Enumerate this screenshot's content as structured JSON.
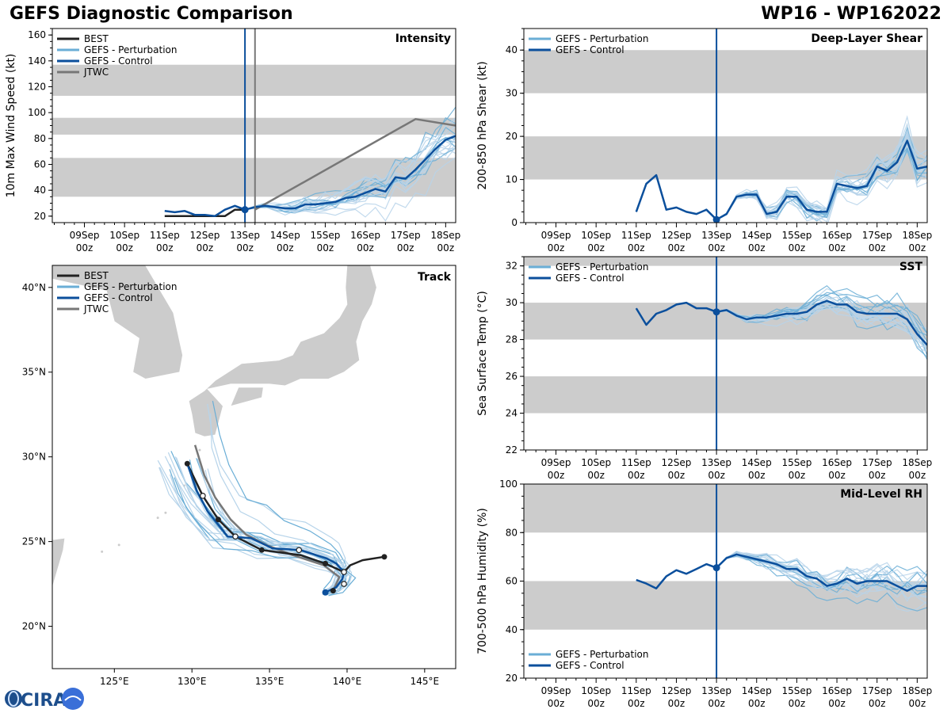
{
  "header": {
    "title_left": "GEFS Diagnostic Comparison",
    "title_right": "WP16 - WP162022"
  },
  "colors": {
    "best": "#222222",
    "perturbation": "#6aaed6",
    "perturbation_light": "#b7d4ea",
    "control": "#0b4f9c",
    "jtwc": "#777777",
    "band": "#cccccc",
    "land": "#cccccc"
  },
  "time_axis": {
    "ticks": [
      {
        "d": 1,
        "top": "09Sep",
        "bot": "00z"
      },
      {
        "d": 2,
        "top": "10Sep",
        "bot": "00z"
      },
      {
        "d": 3,
        "top": "11Sep",
        "bot": "00z"
      },
      {
        "d": 4,
        "top": "12Sep",
        "bot": "00z"
      },
      {
        "d": 5,
        "top": "13Sep",
        "bot": "00z"
      },
      {
        "d": 6,
        "top": "14Sep",
        "bot": "00z"
      },
      {
        "d": 7,
        "top": "15Sep",
        "bot": "00z"
      },
      {
        "d": 8,
        "top": "16Sep",
        "bot": "00z"
      },
      {
        "d": 9,
        "top": "17Sep",
        "bot": "00z"
      },
      {
        "d": 10,
        "top": "18Sep",
        "bot": "00z"
      }
    ],
    "range": [
      0.2,
      10.25
    ],
    "init": 5.0
  },
  "chart_data": [
    {
      "id": "intensity",
      "type": "line",
      "title": "Intensity",
      "ylabel": "10m Max Wind Speed (kt)",
      "ylim": [
        15,
        165
      ],
      "yticks": [
        20,
        40,
        60,
        80,
        100,
        120,
        140,
        160
      ],
      "bands": [
        [
          35,
          65
        ],
        [
          83,
          96
        ],
        [
          113,
          137
        ]
      ],
      "legend": [
        "BEST",
        "GEFS - Perturbation",
        "GEFS - Control",
        "JTWC"
      ],
      "init_lines": [
        5.0,
        5.25
      ],
      "series": [
        {
          "name": "BEST",
          "x": [
            3,
            3.25,
            3.5,
            3.75,
            4,
            4.25,
            4.5,
            4.75,
            5
          ],
          "y": [
            20,
            20,
            20,
            20,
            20,
            20,
            20,
            25,
            25
          ]
        },
        {
          "name": "JTWC",
          "x": [
            5.25,
            9.25,
            10.25
          ],
          "y": [
            25,
            95,
            90
          ]
        },
        {
          "name": "GEFS - Control",
          "x": [
            5,
            5.25,
            5.5,
            5.75,
            6,
            6.25,
            6.5,
            6.75,
            7,
            7.25,
            7.5,
            7.75,
            8,
            8.25,
            8.5,
            8.75,
            9,
            9.25,
            9.5,
            9.75,
            10,
            10.25
          ],
          "y": [
            25,
            27,
            28,
            27,
            26,
            26,
            29,
            29,
            30,
            31,
            34,
            35,
            38,
            41,
            39,
            50,
            49,
            56,
            64,
            72,
            79,
            82
          ]
        },
        {
          "name": "GEFS - Control (pre-init)",
          "x": [
            3,
            3.25,
            3.5,
            3.75,
            4,
            4.25,
            4.5,
            4.75,
            5
          ],
          "y": [
            24,
            23,
            24,
            21,
            21,
            20,
            25,
            28,
            25
          ]
        }
      ],
      "init_marker": {
        "x": 5,
        "y": 25
      }
    },
    {
      "id": "shear",
      "type": "line",
      "title": "Deep-Layer Shear",
      "ylabel": "200-850 hPa Shear (kt)",
      "ylim": [
        0,
        45
      ],
      "yticks": [
        0,
        10,
        20,
        30,
        40
      ],
      "bands": [
        [
          10,
          20
        ],
        [
          30,
          40
        ]
      ],
      "legend": [
        "GEFS - Perturbation",
        "GEFS - Control"
      ],
      "init_lines": [
        5.0
      ],
      "series": [
        {
          "name": "GEFS - Control",
          "x": [
            3,
            3.25,
            3.5,
            3.75,
            4,
            4.25,
            4.5,
            4.75,
            5,
            5.25,
            5.5,
            5.75,
            6,
            6.25,
            6.5,
            6.75,
            7,
            7.25,
            7.5,
            7.75,
            8,
            8.25,
            8.5,
            8.75,
            9,
            9.25,
            9.5,
            9.75,
            10,
            10.25
          ],
          "y": [
            2.5,
            9,
            11,
            3,
            3.5,
            2.5,
            2,
            3,
            0.7,
            2,
            6,
            6.5,
            6.5,
            2,
            2.5,
            6,
            6,
            3,
            2.5,
            2.5,
            9,
            8.5,
            8,
            8.5,
            13,
            12,
            14,
            19,
            12.5,
            13
          ]
        }
      ],
      "init_marker": {
        "x": 5,
        "y": 0.7
      }
    },
    {
      "id": "sst",
      "type": "line",
      "title": "SST",
      "ylabel": "Sea Surface Temp (°C)",
      "ylim": [
        22,
        32.5
      ],
      "yticks": [
        22,
        24,
        26,
        28,
        30,
        32
      ],
      "bands": [
        [
          24,
          26
        ],
        [
          28,
          30
        ],
        [
          32,
          33
        ]
      ],
      "legend": [
        "GEFS - Perturbation",
        "GEFS - Control"
      ],
      "init_lines": [
        5.0
      ],
      "series": [
        {
          "name": "GEFS - Control",
          "x": [
            3,
            3.25,
            3.5,
            3.75,
            4,
            4.25,
            4.5,
            4.75,
            5,
            5.25,
            5.5,
            5.75,
            6,
            6.25,
            6.5,
            6.75,
            7,
            7.25,
            7.5,
            7.75,
            8,
            8.25,
            8.5,
            8.75,
            9,
            9.25,
            9.5,
            9.75,
            10,
            10.25
          ],
          "y": [
            29.7,
            28.8,
            29.4,
            29.6,
            29.9,
            30.0,
            29.7,
            29.7,
            29.5,
            29.6,
            29.3,
            29.1,
            29.2,
            29.2,
            29.3,
            29.4,
            29.4,
            29.5,
            29.9,
            30.1,
            29.9,
            29.9,
            29.5,
            29.4,
            29.4,
            29.4,
            29.4,
            29.1,
            28.3,
            27.7
          ]
        }
      ],
      "init_marker": {
        "x": 5,
        "y": 29.5
      }
    },
    {
      "id": "rh",
      "type": "line",
      "title": "Mid-Level RH",
      "ylabel": "700-500 hPa Humidity (%)",
      "ylim": [
        20,
        100
      ],
      "yticks": [
        20,
        40,
        60,
        80,
        100
      ],
      "bands": [
        [
          40,
          60
        ],
        [
          80,
          100
        ]
      ],
      "legend": [
        "GEFS - Perturbation",
        "GEFS - Control"
      ],
      "init_lines": [
        5.0
      ],
      "series": [
        {
          "name": "GEFS - Control",
          "x": [
            3,
            3.25,
            3.5,
            3.75,
            4,
            4.25,
            4.5,
            4.75,
            5,
            5.25,
            5.5,
            5.75,
            6,
            6.25,
            6.5,
            6.75,
            7,
            7.25,
            7.5,
            7.75,
            8,
            8.25,
            8.5,
            8.75,
            9,
            9.25,
            9.5,
            9.75,
            10,
            10.25
          ],
          "y": [
            60.5,
            59,
            57,
            62,
            64.5,
            63,
            65,
            67,
            65.5,
            69.5,
            71,
            70,
            69,
            68,
            67,
            65,
            65,
            62,
            61,
            58,
            59,
            61,
            59,
            60,
            60,
            60,
            58,
            56,
            58,
            58
          ]
        }
      ],
      "init_marker": {
        "x": 5,
        "y": 65.5
      }
    },
    {
      "id": "track",
      "type": "line",
      "title": "Track",
      "legend": [
        "BEST",
        "GEFS - Perturbation",
        "GEFS - Control",
        "JTWC"
      ],
      "lon_range": [
        121,
        147
      ],
      "lat_range": [
        17.5,
        41.3
      ],
      "lon_ticks": [
        {
          "v": 125,
          "label": "125°E"
        },
        {
          "v": 130,
          "label": "130°E"
        },
        {
          "v": 135,
          "label": "135°E"
        },
        {
          "v": 140,
          "label": "140°E"
        },
        {
          "v": 145,
          "label": "145°E"
        }
      ],
      "lat_ticks": [
        {
          "v": 20,
          "label": "20°N"
        },
        {
          "v": 25,
          "label": "25°N"
        },
        {
          "v": 30,
          "label": "30°N"
        },
        {
          "v": 35,
          "label": "35°N"
        },
        {
          "v": 40,
          "label": "40°N"
        }
      ],
      "best": {
        "lon": [
          142.4,
          141.0,
          140.2,
          139.8,
          138.6,
          137.0,
          134.5,
          132.8,
          131.7,
          130.7,
          129.7
        ],
        "lat": [
          24.1,
          23.9,
          23.6,
          23.2,
          23.7,
          24.2,
          24.5,
          25.3,
          26.3,
          27.7,
          29.6
        ]
      },
      "control": {
        "lon": [
          138.6,
          139.3,
          139.7,
          139.8,
          139.3,
          138.7,
          137.0,
          135.2,
          133.8,
          132.3,
          131.0,
          130.3,
          129.7
        ],
        "lat": [
          22.0,
          22.3,
          22.8,
          23.2,
          23.7,
          24.0,
          24.5,
          24.6,
          25.2,
          25.3,
          26.8,
          28.0,
          29.6
        ]
      },
      "jtwc": {
        "lon": [
          139.1,
          139.5,
          138.5,
          136.5,
          134.8,
          133.5,
          132.5,
          131.5,
          130.8,
          130.2
        ],
        "lat": [
          22.1,
          22.9,
          23.6,
          24.2,
          24.8,
          25.4,
          26.3,
          27.6,
          28.9,
          30.7
        ]
      },
      "best_open_points": [
        [
          130.7,
          27.7
        ],
        [
          132.8,
          25.3
        ],
        [
          136.9,
          24.5
        ],
        [
          139.8,
          22.5
        ],
        [
          139.8,
          23.2
        ]
      ],
      "best_filled_points": [
        [
          129.7,
          29.6
        ],
        [
          131.7,
          26.3
        ],
        [
          134.5,
          24.5
        ],
        [
          138.6,
          23.7
        ],
        [
          142.4,
          24.1
        ],
        [
          139.1,
          22.1
        ],
        [
          138.6,
          22.0
        ]
      ]
    }
  ],
  "logo": {
    "text": "CIRA"
  }
}
